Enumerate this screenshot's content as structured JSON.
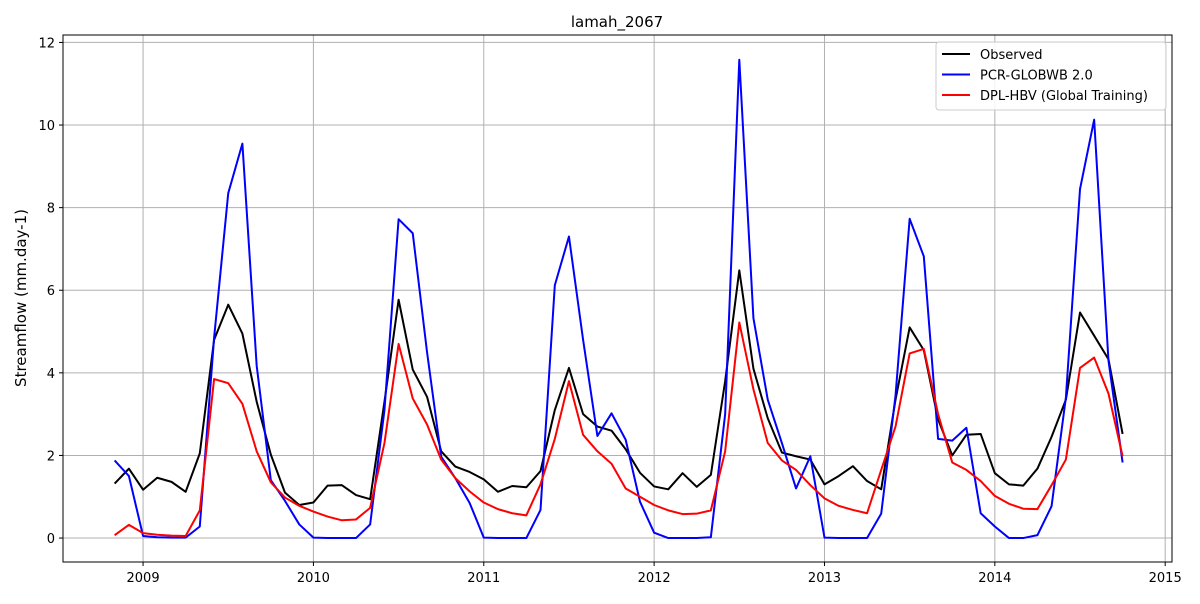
{
  "chart_data": {
    "type": "line",
    "title": "lamah_2067",
    "xlabel": "",
    "ylabel": "Streamflow (mm.day-1)",
    "xlim": [
      2008.53,
      2015.04
    ],
    "ylim": [
      -0.58,
      12.18
    ],
    "xticks": [
      2009,
      2010,
      2011,
      2012,
      2013,
      2014,
      2015
    ],
    "xtick_labels": [
      "2009",
      "2010",
      "2011",
      "2012",
      "2013",
      "2014",
      "2015"
    ],
    "yticks": [
      0,
      2,
      4,
      6,
      8,
      10,
      12
    ],
    "ytick_labels": [
      "0",
      "2",
      "4",
      "6",
      "8",
      "10",
      "12"
    ],
    "grid": true,
    "legend_position": "top-right",
    "x": [
      2008.833,
      2008.917,
      2009.0,
      2009.083,
      2009.167,
      2009.25,
      2009.333,
      2009.417,
      2009.5,
      2009.583,
      2009.667,
      2009.75,
      2009.833,
      2009.917,
      2010.0,
      2010.083,
      2010.167,
      2010.25,
      2010.333,
      2010.417,
      2010.5,
      2010.583,
      2010.667,
      2010.75,
      2010.833,
      2010.917,
      2011.0,
      2011.083,
      2011.167,
      2011.25,
      2011.333,
      2011.417,
      2011.5,
      2011.583,
      2011.667,
      2011.75,
      2011.833,
      2011.917,
      2012.0,
      2012.083,
      2012.167,
      2012.25,
      2012.333,
      2012.417,
      2012.5,
      2012.583,
      2012.667,
      2012.75,
      2012.833,
      2012.917,
      2013.0,
      2013.083,
      2013.167,
      2013.25,
      2013.333,
      2013.417,
      2013.5,
      2013.583,
      2013.667,
      2013.75,
      2013.833,
      2013.917,
      2014.0,
      2014.083,
      2014.167,
      2014.25,
      2014.333,
      2014.417,
      2014.5,
      2014.583,
      2014.667,
      2014.75
    ],
    "series": [
      {
        "name": "Observed",
        "color": "#000000",
        "values": [
          1.32,
          1.68,
          1.17,
          1.46,
          1.36,
          1.12,
          2.05,
          4.8,
          5.65,
          4.95,
          3.3,
          2.02,
          1.1,
          0.8,
          0.86,
          1.27,
          1.28,
          1.04,
          0.94,
          3.3,
          5.77,
          4.08,
          3.42,
          2.1,
          1.73,
          1.6,
          1.42,
          1.12,
          1.26,
          1.23,
          1.62,
          3.1,
          4.12,
          3.0,
          2.7,
          2.6,
          2.15,
          1.58,
          1.25,
          1.18,
          1.57,
          1.24,
          1.53,
          3.8,
          6.48,
          4.1,
          2.9,
          2.07,
          1.98,
          1.9,
          1.3,
          1.5,
          1.74,
          1.38,
          1.18,
          3.35,
          5.1,
          4.55,
          2.87,
          2.0,
          2.5,
          2.52,
          1.57,
          1.3,
          1.27,
          1.68,
          2.45,
          3.35,
          5.46,
          4.9,
          4.33,
          2.52
        ]
      },
      {
        "name": "PCR-GLOBWB 2.0",
        "color": "#0000ff",
        "values": [
          1.88,
          1.5,
          0.05,
          0.02,
          0.01,
          0.01,
          0.28,
          4.85,
          8.35,
          9.55,
          4.17,
          1.4,
          0.9,
          0.33,
          0.01,
          0.0,
          0.0,
          0.0,
          0.33,
          3.1,
          7.72,
          7.38,
          4.5,
          1.97,
          1.45,
          0.85,
          0.01,
          0.0,
          0.0,
          0.0,
          0.68,
          6.12,
          7.3,
          4.8,
          2.47,
          3.02,
          2.38,
          0.88,
          0.13,
          0.0,
          0.0,
          0.0,
          0.02,
          3.0,
          11.58,
          5.32,
          3.35,
          2.3,
          1.2,
          1.98,
          0.01,
          0.0,
          0.0,
          0.0,
          0.59,
          3.45,
          7.73,
          6.82,
          2.4,
          2.36,
          2.67,
          0.6,
          0.28,
          0.0,
          0.0,
          0.07,
          0.77,
          3.4,
          8.45,
          10.13,
          4.3,
          1.83
        ]
      },
      {
        "name": "DPL-HBV (Global Training)",
        "color": "#ff0000",
        "values": [
          0.07,
          0.32,
          0.12,
          0.08,
          0.06,
          0.05,
          0.67,
          3.85,
          3.75,
          3.25,
          2.1,
          1.35,
          0.98,
          0.78,
          0.64,
          0.52,
          0.43,
          0.45,
          0.73,
          2.3,
          4.7,
          3.38,
          2.75,
          1.9,
          1.45,
          1.13,
          0.86,
          0.7,
          0.6,
          0.55,
          1.3,
          2.4,
          3.8,
          2.5,
          2.1,
          1.8,
          1.2,
          1.0,
          0.8,
          0.67,
          0.58,
          0.59,
          0.67,
          2.1,
          5.22,
          3.6,
          2.3,
          1.88,
          1.65,
          1.28,
          0.96,
          0.78,
          0.68,
          0.6,
          1.65,
          2.7,
          4.47,
          4.58,
          3.0,
          1.83,
          1.65,
          1.38,
          1.02,
          0.83,
          0.71,
          0.7,
          1.28,
          1.9,
          4.12,
          4.37,
          3.5,
          1.98
        ]
      }
    ]
  }
}
